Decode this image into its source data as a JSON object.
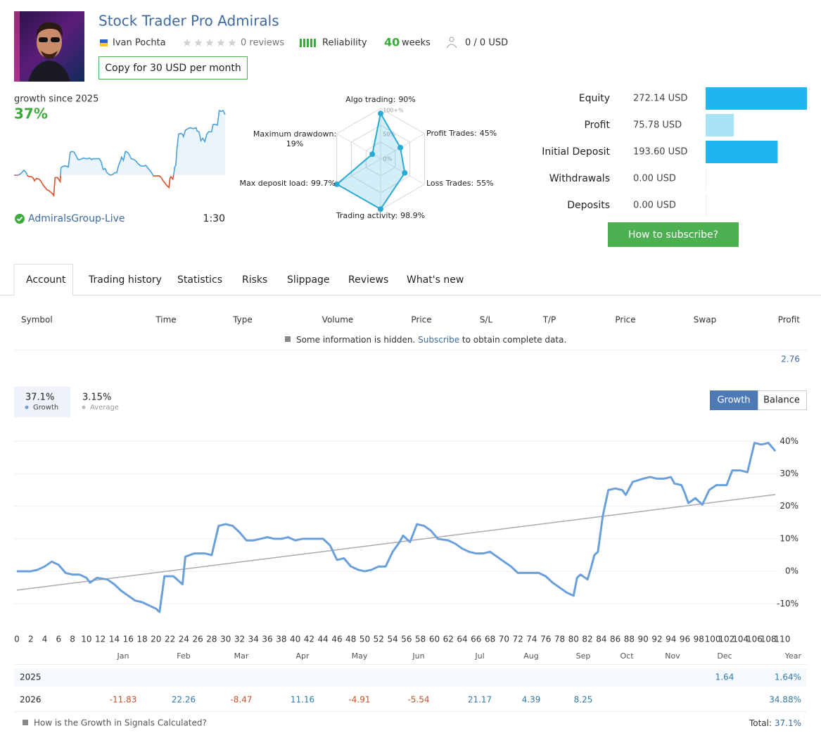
{
  "header": {
    "title": "Stock Trader Pro Admirals",
    "author": "Ivan Pochta",
    "reviews": "0 reviews",
    "reliability": "Reliability",
    "weeks_value": "40",
    "weeks_unit": "weeks",
    "subscribers": "0 / 0 USD",
    "copy_button": "Copy for 30 USD per month"
  },
  "summary": {
    "growth_label": "growth since 2025",
    "growth_value": "37%",
    "broker": "AdmiralsGroup-Live",
    "leverage": "1:30"
  },
  "subscribe_button": "How to subscribe?",
  "tabs": [
    "Account",
    "Trading history",
    "Statistics",
    "Risks",
    "Slippage",
    "Reviews",
    "What's new"
  ],
  "active_tab": 0,
  "trades": {
    "columns": [
      "Symbol",
      "Time",
      "Type",
      "Volume",
      "Price",
      "S/L",
      "T/P",
      "Price",
      "Swap",
      "Profit"
    ],
    "notice": {
      "before": "Some information is hidden.",
      "link": "Subscribe",
      "after": "to obtain complete data."
    },
    "total_profit": "2.76"
  },
  "chart_data": [
    {
      "type": "radar",
      "color": "#29a9d6",
      "axes": [
        {
          "label": "Algo trading:",
          "value": 90,
          "value_label": "90%"
        },
        {
          "label": "Profit Trades:",
          "value": 45,
          "value_label": "45%"
        },
        {
          "label": "Loss Trades:",
          "value": 55,
          "value_label": "55%"
        },
        {
          "label": "Trading activity:",
          "value": 98.9,
          "value_label": "98.9%"
        },
        {
          "label": "Max deposit load:",
          "value": 99.7,
          "value_label": "99.7%"
        },
        {
          "label": "Maximum drawdown:",
          "value": 19,
          "value_label": "19%"
        }
      ],
      "ring_labels": [
        "100+%",
        "50%",
        "0%"
      ]
    },
    {
      "type": "bar",
      "categories": [
        "Equity",
        "Profit",
        "Initial Deposit",
        "Withdrawals",
        "Deposits"
      ],
      "values": [
        272.14,
        75.78,
        193.6,
        0,
        0
      ],
      "value_labels": [
        "272.14 USD",
        "75.78 USD",
        "193.60 USD",
        "0.00 USD",
        "0.00 USD"
      ],
      "colors": [
        "#1fb5ee",
        "#a8e2f6",
        "#1fb5ee",
        "#1fb5ee",
        "#1fb5ee"
      ]
    },
    {
      "type": "line",
      "legend_values": [
        "37.1%",
        "3.15%"
      ],
      "buttons": [
        "Growth",
        "Balance"
      ],
      "x": [
        0,
        2,
        3,
        4,
        5,
        6,
        7,
        8,
        9,
        10,
        10.5,
        11.5,
        13,
        14,
        15,
        16,
        17,
        18,
        19,
        20,
        20.5,
        21.2,
        22.5,
        23.8,
        24.2,
        25.5,
        27,
        28,
        29,
        30,
        31,
        32,
        33,
        34,
        35,
        36,
        37,
        38,
        39,
        40,
        41,
        42,
        43,
        44,
        45,
        46,
        47,
        48,
        49,
        50,
        51,
        52,
        53,
        54,
        55,
        55.5,
        56.5,
        57.5,
        58.5,
        59.5,
        60.5,
        62,
        63,
        64,
        65,
        66,
        67,
        68,
        69,
        70,
        71,
        72,
        73,
        74,
        75,
        76,
        77,
        78,
        79,
        80,
        80.5,
        81,
        82,
        82.5,
        83,
        83.5,
        84.2,
        85,
        86,
        87,
        87.5,
        88.5,
        90,
        91,
        92,
        93,
        94,
        94.5,
        95.5,
        96,
        96.5,
        97.5,
        98.5,
        99.5,
        100.5,
        102,
        102.8,
        104,
        105,
        106,
        107,
        108,
        109
      ],
      "series": [
        {
          "name": "Growth",
          "color": "#6a9fd8",
          "values": [
            0,
            0,
            0.5,
            1.5,
            3,
            2,
            -0.5,
            -1,
            -1,
            -2,
            -3.5,
            -2,
            -2.5,
            -4,
            -6,
            -7.5,
            -9,
            -9.5,
            -10.5,
            -11.5,
            -12.5,
            -1.5,
            -1.5,
            -4,
            4.5,
            5.5,
            5.5,
            5,
            14,
            14.5,
            14,
            12,
            9.5,
            9.5,
            10,
            10.5,
            10,
            10,
            10.5,
            9.5,
            10,
            10,
            10,
            10,
            8,
            3.5,
            4,
            1.5,
            0.5,
            0,
            0.5,
            1.5,
            1.5,
            6,
            9,
            11,
            9,
            14.5,
            14,
            12.5,
            10,
            9.5,
            8.5,
            7,
            6,
            5.5,
            5.5,
            6,
            4.5,
            3,
            1.5,
            -0.5,
            -0.5,
            -0.5,
            -0.5,
            -1.5,
            -3.5,
            -5,
            -6.5,
            -7.5,
            -2,
            -1,
            -2.5,
            1,
            5,
            6,
            17,
            25,
            25.5,
            25,
            23.5,
            27.5,
            28.5,
            29,
            28.5,
            28.5,
            29,
            27,
            26.5,
            24,
            21,
            22.5,
            20.5,
            25,
            26.5,
            26.5,
            31,
            31,
            30.5,
            39.5,
            39,
            39.5,
            37
          ]
        },
        {
          "name": "Average",
          "color": "#aaaaaa",
          "x": [
            0,
            109
          ],
          "values": [
            -5.8,
            23.6
          ]
        }
      ],
      "xlim": [
        0,
        110
      ],
      "xticks": [
        0,
        2,
        4,
        6,
        8,
        10,
        12,
        14,
        16,
        18,
        20,
        22,
        24,
        26,
        28,
        30,
        32,
        34,
        36,
        38,
        40,
        42,
        44,
        46,
        48,
        50,
        52,
        54,
        56,
        58,
        60,
        62,
        64,
        66,
        68,
        70,
        72,
        74,
        76,
        78,
        80,
        82,
        84,
        86,
        88,
        90,
        92,
        94,
        96,
        98,
        100,
        102,
        104,
        106,
        108,
        110
      ],
      "ylim": [
        -17.5,
        43.3
      ],
      "yticks": [
        {
          "value": 40,
          "label": "40%"
        },
        {
          "value": 30,
          "label": "30%"
        },
        {
          "value": 20,
          "label": "20%"
        },
        {
          "value": 10,
          "label": "10%"
        },
        {
          "value": 0,
          "label": "0%"
        },
        {
          "value": -10,
          "label": "-10%"
        }
      ],
      "grid": true
    }
  ],
  "monthly": {
    "months": [
      "Jan",
      "Feb",
      "Mar",
      "Apr",
      "May",
      "Jun",
      "Jul",
      "Aug",
      "Sep",
      "Oct",
      "Nov",
      "Dec"
    ],
    "year_label": "Year",
    "rows": [
      {
        "year": "2025",
        "values": [
          null,
          null,
          null,
          null,
          null,
          null,
          null,
          null,
          null,
          null,
          null,
          1.64
        ],
        "total": "1.64%"
      },
      {
        "year": "2026",
        "values": [
          -11.83,
          22.26,
          -8.47,
          11.16,
          -4.91,
          -5.54,
          21.17,
          4.39,
          8.25,
          null,
          null,
          null
        ],
        "total": "34.88%"
      }
    ]
  },
  "footer": {
    "help": "How is the Growth in Signals Calculated?",
    "total_label": "Total:",
    "total_value": "37.1%"
  }
}
